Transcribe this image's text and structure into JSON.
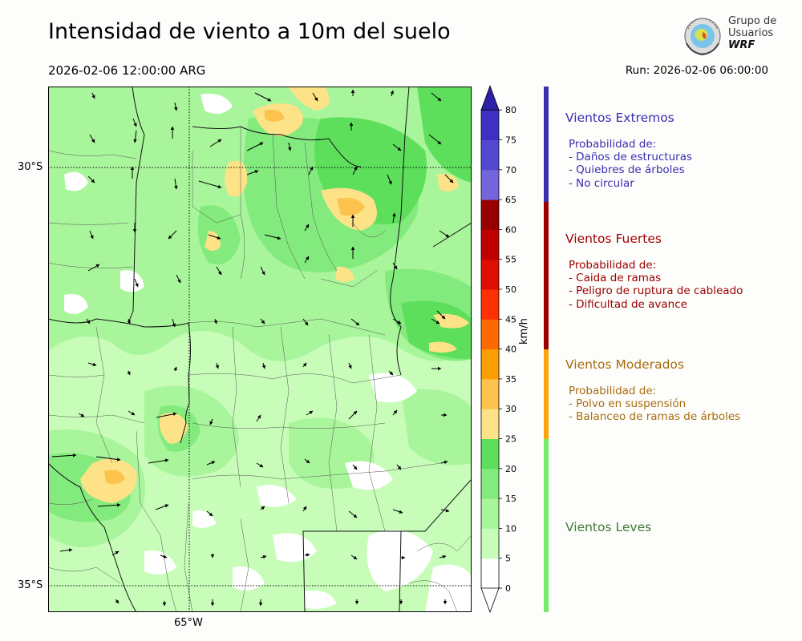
{
  "title": "Intensidad de viento a 10m del suelo",
  "valid_time": "2026-02-06 12:00:00 ARG",
  "run_time": "Run: 2026-02-06 06:00:00",
  "logo": {
    "line1": "Grupo de",
    "line2": "Usuarios",
    "line3": "WRF"
  },
  "map": {
    "lat_labels": [
      "30°S",
      "35°S"
    ],
    "lon_labels": [
      "65°W"
    ]
  },
  "colorbar": {
    "units": "km/h",
    "ticks": [
      "0",
      "5",
      "10",
      "15",
      "20",
      "25",
      "30",
      "35",
      "40",
      "45",
      "50",
      "55",
      "60",
      "65",
      "70",
      "75",
      "80"
    ],
    "colors": [
      "#ffffff",
      "#c8fdb9",
      "#a9f59b",
      "#83ea7d",
      "#5ddf5c",
      "#fde287",
      "#fdc34f",
      "#fd9f02",
      "#fd6a02",
      "#fd3100",
      "#e00e00",
      "#bf0000",
      "#980000",
      "#7265de",
      "#5349d0",
      "#3e30c0",
      "#2d1fa7"
    ],
    "color_meaning": "fill colour for wind speed bins 0-5, 5-10, ... 80+ km/h"
  },
  "categories": [
    {
      "title": "Vientos Extremos",
      "color": "#3a2fb1",
      "desc": [
        "Probabilidad de:",
        "- Daños de estructuras",
        "- Quiebres de árboles",
        "- No circular"
      ]
    },
    {
      "title": "Vientos Fuertes",
      "color": "#9b0000",
      "desc": [
        "Probabilidad de:",
        "- Caida de ramas",
        "- Peligro de ruptura de cableado",
        "- Dificultad de avance"
      ]
    },
    {
      "title": "Vientos Moderados",
      "color": "#a86c10",
      "desc": [
        "Probabilidad de:",
        "- Polvo en suspensión",
        "- Balanceo de ramas de árboles"
      ]
    },
    {
      "title": "Vientos Leves",
      "color": "#3f7a34",
      "desc": []
    }
  ]
}
